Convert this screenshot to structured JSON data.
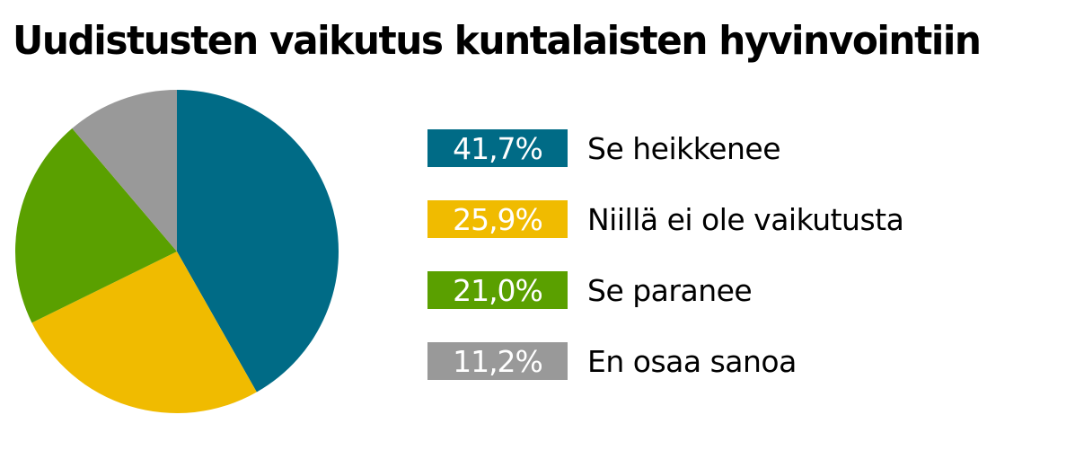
{
  "chart_data": {
    "type": "pie",
    "title": "Uudistusten vaikutus kuntalaisten hyvinvointiin",
    "legend_position": "right",
    "slices": [
      {
        "label": "Se heikkenee",
        "value": 41.7,
        "value_label": "41,7%",
        "color": "#006b86"
      },
      {
        "label": "Niillä ei ole vaikutusta",
        "value": 25.9,
        "value_label": "25,9%",
        "color": "#f0bb00"
      },
      {
        "label": "Se paranee",
        "value": 21.0,
        "value_label": "21,0%",
        "color": "#5aa000"
      },
      {
        "label": "En osaa sanoa",
        "value": 11.2,
        "value_label": "11,2%",
        "color": "#999999"
      }
    ]
  }
}
